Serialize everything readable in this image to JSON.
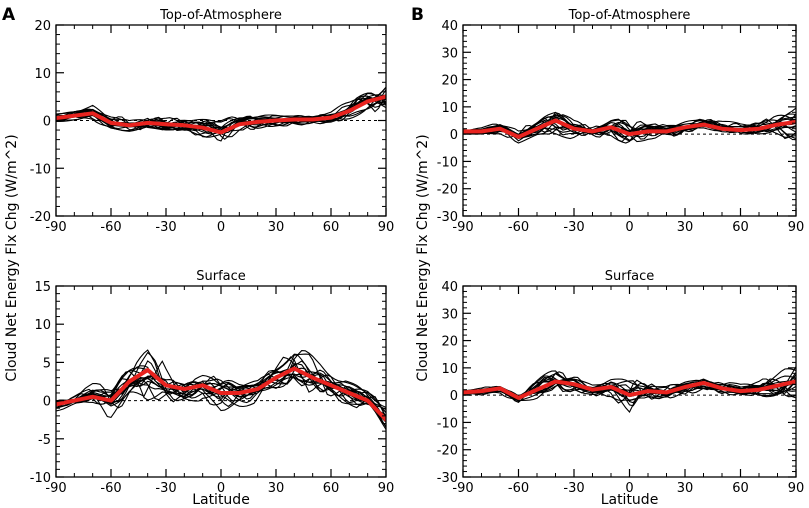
{
  "figure": {
    "shared_ylabel": "Cloud Net Energy Flx Chg (W/m^2)",
    "panel_letters": [
      "A",
      "B"
    ]
  },
  "colors": {
    "mean": "#e8231f",
    "model": "#000000",
    "zero": "#000000"
  },
  "chart_data": [
    {
      "id": "A-toa",
      "type": "line",
      "panel": "A",
      "title": "Top-of-Atmosphere",
      "xlabel": "",
      "ylabel": "Cloud Net Energy Flx Chg (W/m^2)",
      "xlim": [
        -90,
        90
      ],
      "ylim": [
        -20,
        20
      ],
      "xticks": [
        -90,
        -60,
        -30,
        0,
        30,
        60,
        90
      ],
      "yticks": [
        -20,
        -10,
        0,
        10,
        20
      ],
      "x": [
        -90,
        -80,
        -70,
        -60,
        -50,
        -40,
        -30,
        -20,
        -10,
        0,
        10,
        20,
        30,
        40,
        50,
        60,
        70,
        80,
        90
      ],
      "ensemble_mean": [
        0.5,
        1.0,
        1.5,
        -0.5,
        -1.0,
        -0.5,
        -0.8,
        -1.0,
        -1.5,
        -2.5,
        -0.8,
        -0.3,
        0.0,
        0.2,
        0.2,
        0.6,
        2.0,
        4.0,
        5.0
      ],
      "spread": [
        0.6,
        0.7,
        1.2,
        1.2,
        1.0,
        1.0,
        1.0,
        1.2,
        1.6,
        2.5,
        1.6,
        1.0,
        0.9,
        0.9,
        0.9,
        1.0,
        1.4,
        2.0,
        2.8
      ],
      "n_models": 16,
      "zero_line": true
    },
    {
      "id": "A-sfc",
      "type": "line",
      "panel": "A",
      "title": "Surface",
      "xlabel": "Latitude",
      "ylabel": "Cloud Net Energy Flx Chg (W/m^2)",
      "xlim": [
        -90,
        90
      ],
      "ylim": [
        -10,
        15
      ],
      "xticks": [
        -90,
        -60,
        -30,
        0,
        30,
        60,
        90
      ],
      "yticks": [
        -10,
        -5,
        0,
        5,
        10,
        15
      ],
      "x": [
        -90,
        -80,
        -70,
        -60,
        -50,
        -40,
        -30,
        -20,
        -10,
        0,
        10,
        20,
        30,
        40,
        50,
        60,
        70,
        80,
        90
      ],
      "ensemble_mean": [
        -0.5,
        0.0,
        0.5,
        0.0,
        2.5,
        4.0,
        2.0,
        1.5,
        2.0,
        1.0,
        1.0,
        1.5,
        3.0,
        4.2,
        3.0,
        2.0,
        1.0,
        0.0,
        -2.5
      ],
      "spread": [
        0.6,
        0.7,
        1.2,
        1.6,
        2.0,
        3.0,
        2.0,
        1.4,
        1.5,
        2.2,
        1.6,
        1.3,
        1.8,
        2.2,
        2.0,
        1.6,
        1.4,
        1.4,
        1.8
      ],
      "n_models": 16,
      "zero_line": true
    },
    {
      "id": "B-toa",
      "type": "line",
      "panel": "B",
      "title": "Top-of-Atmosphere",
      "xlabel": "",
      "ylabel": "Cloud Net Energy Flx Chg (W/m^2)",
      "xlim": [
        -90,
        90
      ],
      "ylim": [
        -30,
        40
      ],
      "xticks": [
        -90,
        -60,
        -30,
        0,
        30,
        60,
        90
      ],
      "yticks": [
        -30,
        -20,
        -10,
        0,
        10,
        20,
        30,
        40
      ],
      "x": [
        -90,
        -80,
        -70,
        -60,
        -50,
        -40,
        -30,
        -20,
        -10,
        0,
        10,
        20,
        30,
        40,
        50,
        60,
        70,
        80,
        90
      ],
      "ensemble_mean": [
        1.0,
        1.0,
        2.0,
        -1.0,
        2.0,
        5.0,
        2.0,
        1.0,
        2.5,
        0.0,
        1.0,
        1.0,
        2.5,
        3.5,
        2.0,
        1.5,
        2.0,
        3.5,
        4.5
      ],
      "spread": [
        1.0,
        1.0,
        1.5,
        2.0,
        2.5,
        4.0,
        2.5,
        2.0,
        2.5,
        4.0,
        2.5,
        2.0,
        2.0,
        2.0,
        2.0,
        2.0,
        2.5,
        3.5,
        5.0
      ],
      "n_models": 16,
      "zero_line": true
    },
    {
      "id": "B-sfc",
      "type": "line",
      "panel": "B",
      "title": "Surface",
      "xlabel": "Latitude",
      "ylabel": "Cloud Net Energy Flx Chg (W/m^2)",
      "xlim": [
        -90,
        90
      ],
      "ylim": [
        -30,
        40
      ],
      "xticks": [
        -90,
        -60,
        -30,
        0,
        30,
        60,
        90
      ],
      "yticks": [
        -30,
        -20,
        -10,
        0,
        10,
        20,
        30,
        40
      ],
      "x": [
        -90,
        -80,
        -70,
        -60,
        -50,
        -40,
        -30,
        -20,
        -10,
        0,
        10,
        20,
        30,
        40,
        50,
        60,
        70,
        80,
        90
      ],
      "ensemble_mean": [
        1.0,
        1.5,
        2.5,
        -1.0,
        2.0,
        5.0,
        4.0,
        2.0,
        3.0,
        0.0,
        1.5,
        1.0,
        3.0,
        4.5,
        2.5,
        1.5,
        2.0,
        3.5,
        5.0
      ],
      "spread": [
        1.0,
        1.0,
        1.5,
        2.0,
        3.0,
        4.5,
        3.0,
        2.5,
        3.0,
        5.0,
        3.0,
        2.5,
        2.5,
        2.5,
        2.5,
        2.0,
        2.5,
        4.0,
        6.0
      ],
      "n_models": 16,
      "zero_line": true
    }
  ]
}
